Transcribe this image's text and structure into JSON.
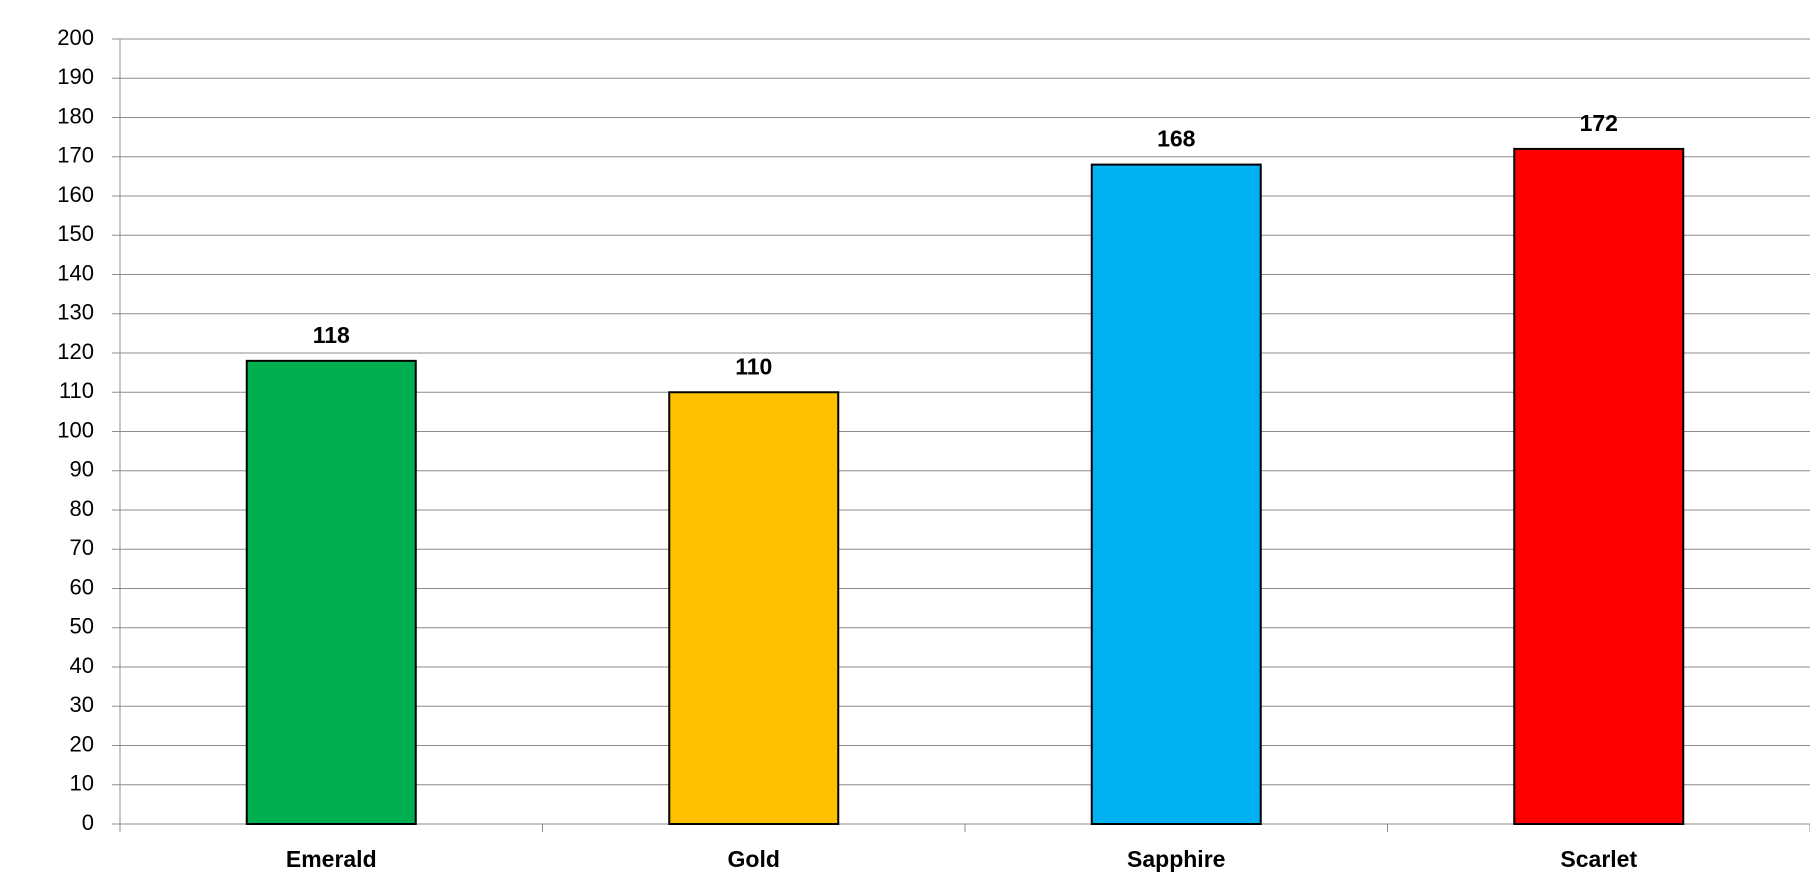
{
  "chart_data": {
    "type": "bar",
    "categories": [
      "Emerald",
      "Gold",
      "Sapphire",
      "Scarlet"
    ],
    "values": [
      118,
      110,
      168,
      172
    ],
    "colors": [
      "#00b050",
      "#ffc000",
      "#00b0f0",
      "#ff0000"
    ],
    "ylim": [
      0,
      200
    ],
    "yticks": [
      0,
      10,
      20,
      30,
      40,
      50,
      60,
      70,
      80,
      90,
      100,
      110,
      120,
      130,
      140,
      150,
      160,
      170,
      180,
      190,
      200
    ],
    "grid": true,
    "data_labels": true
  }
}
